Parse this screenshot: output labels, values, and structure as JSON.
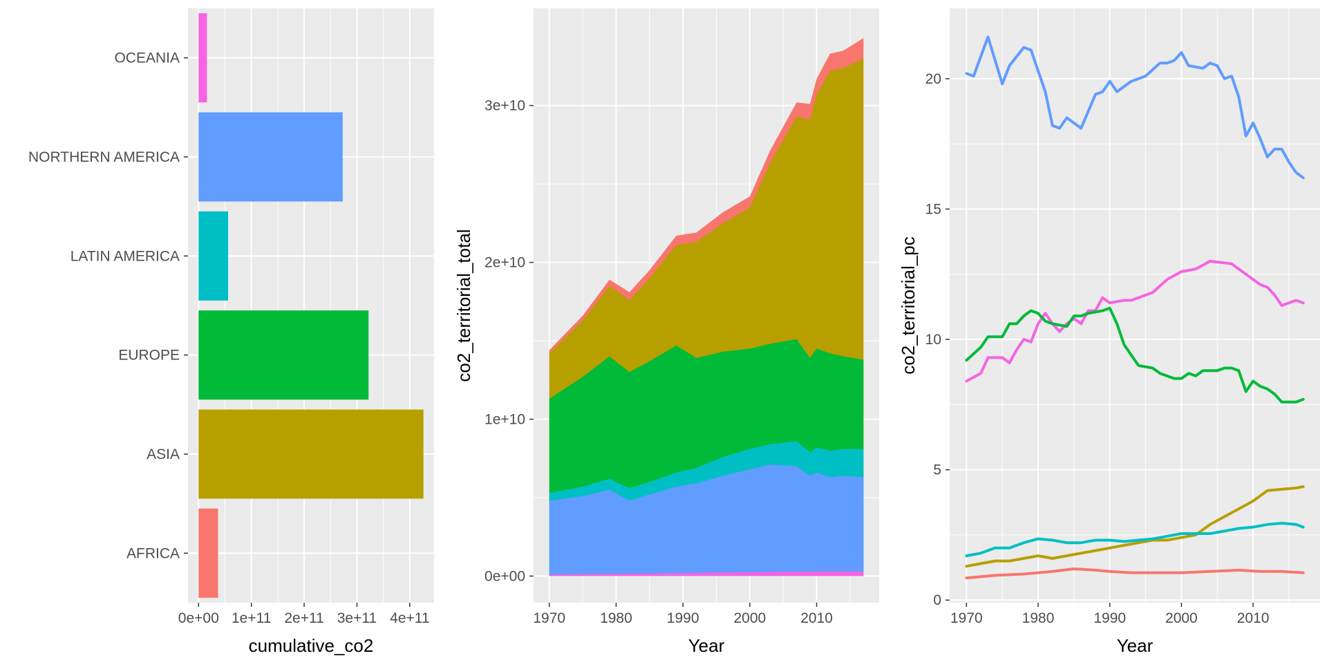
{
  "theme": {
    "panel_background": "#EBEBEB",
    "grid_major": "#FFFFFF",
    "tick_text_color": "#4D4D4D",
    "colors": {
      "AFRICA": "#F8766D",
      "ASIA": "#B79F00",
      "EUROPE": "#00BA38",
      "LATIN AMERICA": "#00BFC4",
      "NORTHERN AMERICA": "#619CFF",
      "OCEANIA": "#F564E3"
    }
  },
  "chart_data": [
    {
      "type": "bar",
      "orientation": "horizontal",
      "xlabel": "cumulative_co2",
      "ylabel": "",
      "categories": [
        "AFRICA",
        "ASIA",
        "EUROPE",
        "LATIN AMERICA",
        "NORTHERN AMERICA",
        "OCEANIA"
      ],
      "values": [
        37000000000,
        426000000000,
        322000000000,
        56000000000,
        273000000000,
        16000000000
      ],
      "xlim": [
        -20000000000,
        446000000000
      ],
      "x_ticks": [
        0,
        100000000000,
        200000000000,
        300000000000,
        400000000000
      ],
      "x_tick_labels": [
        "0e+00",
        "1e+11",
        "2e+11",
        "3e+11",
        "4e+11"
      ],
      "grid": true
    },
    {
      "type": "area",
      "stacked": true,
      "xlabel": "Year",
      "ylabel": "co2_territorial_total",
      "xlim": [
        1967.65,
        2019.35
      ],
      "ylim": [
        -1700000000,
        36200000000
      ],
      "x_ticks": [
        1970,
        1980,
        1990,
        2000,
        2010
      ],
      "x_tick_labels": [
        "1970",
        "1980",
        "1990",
        "2000",
        "2010"
      ],
      "y_ticks": [
        0,
        10000000000,
        20000000000,
        30000000000
      ],
      "y_tick_labels": [
        "0e+00",
        "1e+10",
        "2e+10",
        "3e+10"
      ],
      "grid": true,
      "stack_order_bottom_to_top": [
        "OCEANIA",
        "NORTHERN AMERICA",
        "LATIN AMERICA",
        "EUROPE",
        "ASIA",
        "AFRICA"
      ],
      "cumulative_boundaries_e10": [
        {
          "year": 1970,
          "OCEANIA": 0.01,
          "NORTHERN AMERICA": 0.48,
          "LATIN AMERICA": 0.53,
          "EUROPE": 1.13,
          "ASIA": 1.42,
          "AFRICA": 1.44
        },
        {
          "year": 1975,
          "OCEANIA": 0.012,
          "NORTHERN AMERICA": 0.51,
          "LATIN AMERICA": 0.57,
          "EUROPE": 1.27,
          "ASIA": 1.63,
          "AFRICA": 1.66
        },
        {
          "year": 1979,
          "OCEANIA": 0.014,
          "NORTHERN AMERICA": 0.55,
          "LATIN AMERICA": 0.62,
          "EUROPE": 1.4,
          "ASIA": 1.85,
          "AFRICA": 1.89
        },
        {
          "year": 1982,
          "OCEANIA": 0.015,
          "NORTHERN AMERICA": 0.48,
          "LATIN AMERICA": 0.56,
          "EUROPE": 1.3,
          "ASIA": 1.76,
          "AFRICA": 1.81
        },
        {
          "year": 1985,
          "OCEANIA": 0.016,
          "NORTHERN AMERICA": 0.52,
          "LATIN AMERICA": 0.6,
          "EUROPE": 1.37,
          "ASIA": 1.9,
          "AFRICA": 1.95
        },
        {
          "year": 1989,
          "OCEANIA": 0.018,
          "NORTHERN AMERICA": 0.57,
          "LATIN AMERICA": 0.66,
          "EUROPE": 1.47,
          "ASIA": 2.11,
          "AFRICA": 2.17
        },
        {
          "year": 1992,
          "OCEANIA": 0.02,
          "NORTHERN AMERICA": 0.59,
          "LATIN AMERICA": 0.69,
          "EUROPE": 1.39,
          "ASIA": 2.13,
          "AFRICA": 2.19
        },
        {
          "year": 1996,
          "OCEANIA": 0.022,
          "NORTHERN AMERICA": 0.64,
          "LATIN AMERICA": 0.76,
          "EUROPE": 1.43,
          "ASIA": 2.25,
          "AFRICA": 2.32
        },
        {
          "year": 2000,
          "OCEANIA": 0.024,
          "NORTHERN AMERICA": 0.68,
          "LATIN AMERICA": 0.81,
          "EUROPE": 1.45,
          "ASIA": 2.35,
          "AFRICA": 2.42
        },
        {
          "year": 2003,
          "OCEANIA": 0.026,
          "NORTHERN AMERICA": 0.71,
          "LATIN AMERICA": 0.84,
          "EUROPE": 1.48,
          "ASIA": 2.63,
          "AFRICA": 2.71
        },
        {
          "year": 2007,
          "OCEANIA": 0.028,
          "NORTHERN AMERICA": 0.7,
          "LATIN AMERICA": 0.86,
          "EUROPE": 1.51,
          "ASIA": 2.93,
          "AFRICA": 3.02
        },
        {
          "year": 2009,
          "OCEANIA": 0.028,
          "NORTHERN AMERICA": 0.64,
          "LATIN AMERICA": 0.79,
          "EUROPE": 1.39,
          "ASIA": 2.91,
          "AFRICA": 3.01
        },
        {
          "year": 2010,
          "OCEANIA": 0.029,
          "NORTHERN AMERICA": 0.66,
          "LATIN AMERICA": 0.82,
          "EUROPE": 1.45,
          "ASIA": 3.07,
          "AFRICA": 3.17
        },
        {
          "year": 2012,
          "OCEANIA": 0.029,
          "NORTHERN AMERICA": 0.63,
          "LATIN AMERICA": 0.8,
          "EUROPE": 1.42,
          "ASIA": 3.22,
          "AFRICA": 3.33
        },
        {
          "year": 2014,
          "OCEANIA": 0.029,
          "NORTHERN AMERICA": 0.64,
          "LATIN AMERICA": 0.81,
          "EUROPE": 1.4,
          "ASIA": 3.24,
          "AFRICA": 3.35
        },
        {
          "year": 2017,
          "OCEANIA": 0.029,
          "NORTHERN AMERICA": 0.63,
          "LATIN AMERICA": 0.81,
          "EUROPE": 1.38,
          "ASIA": 3.3,
          "AFRICA": 3.43
        }
      ]
    },
    {
      "type": "line",
      "xlabel": "Year",
      "ylabel": "co2_territorial_pc",
      "xlim": [
        1967.65,
        2019.35
      ],
      "ylim": [
        -0.1,
        22.7
      ],
      "x_ticks": [
        1970,
        1980,
        1990,
        2000,
        2010
      ],
      "x_tick_labels": [
        "1970",
        "1980",
        "1990",
        "2000",
        "2010"
      ],
      "y_ticks": [
        0,
        5,
        10,
        15,
        20
      ],
      "y_tick_labels": [
        "0",
        "5",
        "10",
        "15",
        "20"
      ],
      "grid": true,
      "series": [
        {
          "region": "NORTHERN AMERICA",
          "points": [
            [
              1970,
              20.2
            ],
            [
              1971,
              20.1
            ],
            [
              1973,
              21.6
            ],
            [
              1975,
              19.8
            ],
            [
              1976,
              20.5
            ],
            [
              1978,
              21.2
            ],
            [
              1979,
              21.1
            ],
            [
              1981,
              19.5
            ],
            [
              1982,
              18.2
            ],
            [
              1983,
              18.1
            ],
            [
              1984,
              18.5
            ],
            [
              1986,
              18.1
            ],
            [
              1988,
              19.4
            ],
            [
              1989,
              19.5
            ],
            [
              1990,
              19.9
            ],
            [
              1991,
              19.5
            ],
            [
              1993,
              19.9
            ],
            [
              1995,
              20.1
            ],
            [
              1997,
              20.6
            ],
            [
              1998,
              20.6
            ],
            [
              1999,
              20.7
            ],
            [
              2000,
              21.0
            ],
            [
              2001,
              20.5
            ],
            [
              2003,
              20.4
            ],
            [
              2004,
              20.6
            ],
            [
              2005,
              20.5
            ],
            [
              2006,
              20.0
            ],
            [
              2007,
              20.1
            ],
            [
              2008,
              19.3
            ],
            [
              2009,
              17.8
            ],
            [
              2010,
              18.3
            ],
            [
              2011,
              17.7
            ],
            [
              2012,
              17.0
            ],
            [
              2013,
              17.3
            ],
            [
              2014,
              17.3
            ],
            [
              2015,
              16.8
            ],
            [
              2016,
              16.4
            ],
            [
              2017,
              16.2
            ]
          ]
        },
        {
          "region": "OCEANIA",
          "points": [
            [
              1970,
              8.4
            ],
            [
              1972,
              8.7
            ],
            [
              1973,
              9.3
            ],
            [
              1975,
              9.3
            ],
            [
              1976,
              9.1
            ],
            [
              1977,
              9.6
            ],
            [
              1978,
              10.0
            ],
            [
              1979,
              9.9
            ],
            [
              1980,
              10.6
            ],
            [
              1981,
              11.0
            ],
            [
              1982,
              10.6
            ],
            [
              1983,
              10.3
            ],
            [
              1984,
              10.6
            ],
            [
              1985,
              10.8
            ],
            [
              1986,
              10.6
            ],
            [
              1987,
              11.1
            ],
            [
              1988,
              11.1
            ],
            [
              1989,
              11.6
            ],
            [
              1990,
              11.4
            ],
            [
              1992,
              11.5
            ],
            [
              1993,
              11.5
            ],
            [
              1994,
              11.6
            ],
            [
              1996,
              11.8
            ],
            [
              1998,
              12.3
            ],
            [
              2000,
              12.6
            ],
            [
              2002,
              12.7
            ],
            [
              2004,
              13.0
            ],
            [
              2007,
              12.9
            ],
            [
              2008,
              12.7
            ],
            [
              2009,
              12.5
            ],
            [
              2011,
              12.1
            ],
            [
              2012,
              12.0
            ],
            [
              2013,
              11.7
            ],
            [
              2014,
              11.3
            ],
            [
              2016,
              11.5
            ],
            [
              2017,
              11.4
            ]
          ]
        },
        {
          "region": "EUROPE",
          "points": [
            [
              1970,
              9.2
            ],
            [
              1972,
              9.7
            ],
            [
              1973,
              10.1
            ],
            [
              1975,
              10.1
            ],
            [
              1976,
              10.6
            ],
            [
              1977,
              10.6
            ],
            [
              1978,
              10.9
            ],
            [
              1979,
              11.1
            ],
            [
              1980,
              11.0
            ],
            [
              1981,
              10.7
            ],
            [
              1982,
              10.6
            ],
            [
              1984,
              10.5
            ],
            [
              1985,
              10.9
            ],
            [
              1986,
              10.9
            ],
            [
              1987,
              11.0
            ],
            [
              1989,
              11.1
            ],
            [
              1990,
              11.2
            ],
            [
              1991,
              10.6
            ],
            [
              1992,
              9.8
            ],
            [
              1994,
              9.0
            ],
            [
              1996,
              8.9
            ],
            [
              1997,
              8.7
            ],
            [
              1999,
              8.5
            ],
            [
              2000,
              8.5
            ],
            [
              2001,
              8.7
            ],
            [
              2002,
              8.6
            ],
            [
              2003,
              8.8
            ],
            [
              2005,
              8.8
            ],
            [
              2006,
              8.9
            ],
            [
              2007,
              8.9
            ],
            [
              2008,
              8.8
            ],
            [
              2009,
              8.0
            ],
            [
              2010,
              8.4
            ],
            [
              2011,
              8.2
            ],
            [
              2012,
              8.1
            ],
            [
              2013,
              7.9
            ],
            [
              2014,
              7.6
            ],
            [
              2016,
              7.6
            ],
            [
              2017,
              7.7
            ]
          ]
        },
        {
          "region": "ASIA",
          "points": [
            [
              1970,
              1.3
            ],
            [
              1972,
              1.4
            ],
            [
              1974,
              1.5
            ],
            [
              1976,
              1.5
            ],
            [
              1978,
              1.6
            ],
            [
              1980,
              1.7
            ],
            [
              1982,
              1.6
            ],
            [
              1984,
              1.7
            ],
            [
              1986,
              1.8
            ],
            [
              1988,
              1.9
            ],
            [
              1990,
              2.0
            ],
            [
              1992,
              2.1
            ],
            [
              1994,
              2.2
            ],
            [
              1996,
              2.3
            ],
            [
              1998,
              2.3
            ],
            [
              2000,
              2.4
            ],
            [
              2002,
              2.5
            ],
            [
              2004,
              2.9
            ],
            [
              2006,
              3.2
            ],
            [
              2008,
              3.5
            ],
            [
              2010,
              3.8
            ],
            [
              2012,
              4.2
            ],
            [
              2014,
              4.25
            ],
            [
              2016,
              4.3
            ],
            [
              2017,
              4.35
            ]
          ]
        },
        {
          "region": "LATIN AMERICA",
          "points": [
            [
              1970,
              1.7
            ],
            [
              1972,
              1.8
            ],
            [
              1974,
              2.0
            ],
            [
              1976,
              2.0
            ],
            [
              1978,
              2.2
            ],
            [
              1980,
              2.35
            ],
            [
              1982,
              2.3
            ],
            [
              1984,
              2.2
            ],
            [
              1986,
              2.2
            ],
            [
              1988,
              2.3
            ],
            [
              1990,
              2.3
            ],
            [
              1992,
              2.25
            ],
            [
              1994,
              2.3
            ],
            [
              1996,
              2.35
            ],
            [
              1998,
              2.45
            ],
            [
              2000,
              2.55
            ],
            [
              2002,
              2.55
            ],
            [
              2004,
              2.55
            ],
            [
              2006,
              2.65
            ],
            [
              2008,
              2.75
            ],
            [
              2010,
              2.8
            ],
            [
              2012,
              2.9
            ],
            [
              2014,
              2.95
            ],
            [
              2016,
              2.9
            ],
            [
              2017,
              2.8
            ]
          ]
        },
        {
          "region": "AFRICA",
          "points": [
            [
              1970,
              0.85
            ],
            [
              1974,
              0.95
            ],
            [
              1978,
              1.0
            ],
            [
              1982,
              1.1
            ],
            [
              1985,
              1.2
            ],
            [
              1988,
              1.15
            ],
            [
              1990,
              1.1
            ],
            [
              1993,
              1.05
            ],
            [
              1996,
              1.05
            ],
            [
              2000,
              1.05
            ],
            [
              2004,
              1.1
            ],
            [
              2008,
              1.15
            ],
            [
              2011,
              1.1
            ],
            [
              2014,
              1.1
            ],
            [
              2017,
              1.05
            ]
          ]
        }
      ]
    }
  ]
}
